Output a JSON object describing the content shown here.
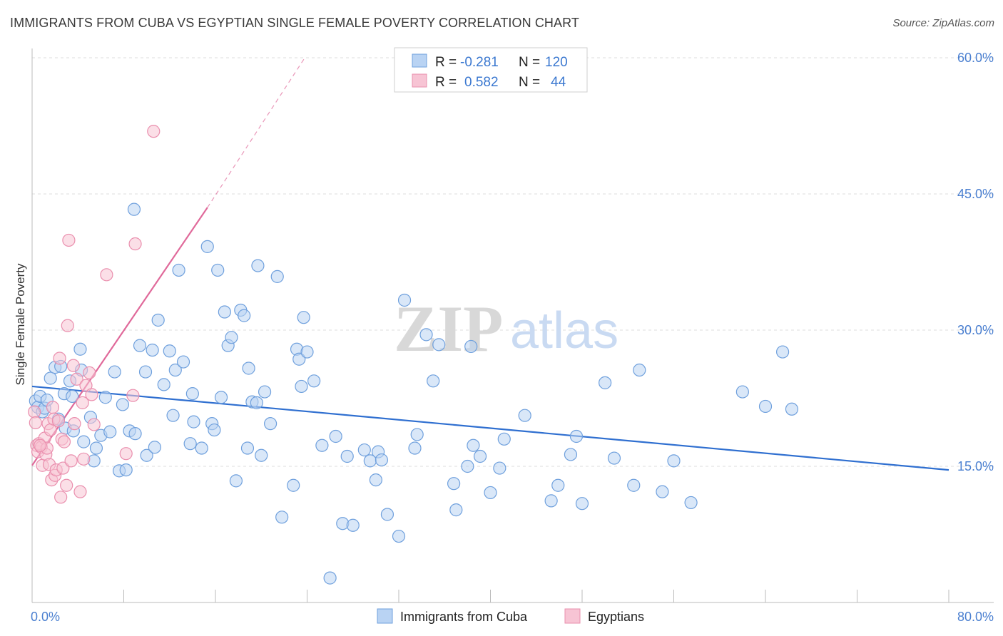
{
  "title": "IMMIGRANTS FROM CUBA VS EGYPTIAN SINGLE FEMALE POVERTY CORRELATION CHART",
  "source": "Source: ZipAtlas.com",
  "watermark": {
    "zip": "ZIP",
    "atlas": "atlas"
  },
  "colors": {
    "blue_fill": "#b9d3f3",
    "blue_stroke": "#6fa0dd",
    "blue_line": "#2f6fd0",
    "pink_fill": "#f7c4d4",
    "pink_stroke": "#ea8fae",
    "pink_line": "#e0699a",
    "tick_text": "#4a7fd0",
    "grid": "#dcdcdc"
  },
  "legend": {
    "rows": [
      {
        "r_label": "R =",
        "r_value": "-0.281",
        "n_label": "N =",
        "n_value": "120"
      },
      {
        "r_label": "R =",
        "r_value": "0.582",
        "n_label": "N =",
        "n_value": "44"
      }
    ]
  },
  "chart_data": {
    "type": "scatter",
    "ylabel": "Single Female Poverty",
    "xlim": [
      0,
      80
    ],
    "ylim": [
      0,
      60
    ],
    "x_tick_labels": [
      "0.0%",
      "80.0%"
    ],
    "y_ticks": [
      15,
      30,
      45,
      60
    ],
    "y_tick_labels": [
      "15.0%",
      "30.0%",
      "45.0%",
      "60.0%"
    ],
    "grid": true,
    "legend_position": "bottom",
    "series": [
      {
        "name": "Immigrants from Cuba",
        "color": "blue",
        "trend": {
          "x": [
            0,
            80
          ],
          "y": [
            23.8,
            14.6
          ],
          "dashed_to": null
        },
        "points": [
          [
            0.3,
            22.2
          ],
          [
            0.5,
            21.5
          ],
          [
            0.7,
            22.7
          ],
          [
            0.9,
            21.0
          ],
          [
            1.1,
            21.4
          ],
          [
            1.3,
            22.3
          ],
          [
            1.6,
            24.7
          ],
          [
            2.0,
            25.9
          ],
          [
            2.3,
            20.2
          ],
          [
            2.5,
            26.0
          ],
          [
            2.8,
            23.0
          ],
          [
            2.9,
            19.2
          ],
          [
            3.3,
            24.4
          ],
          [
            3.5,
            22.7
          ],
          [
            3.6,
            18.9
          ],
          [
            4.2,
            27.9
          ],
          [
            4.3,
            25.6
          ],
          [
            4.5,
            17.7
          ],
          [
            5.1,
            20.4
          ],
          [
            5.4,
            15.6
          ],
          [
            5.6,
            17.0
          ],
          [
            6.0,
            18.4
          ],
          [
            6.4,
            22.6
          ],
          [
            6.8,
            18.8
          ],
          [
            7.2,
            25.4
          ],
          [
            7.6,
            14.5
          ],
          [
            7.9,
            21.8
          ],
          [
            8.2,
            14.6
          ],
          [
            8.5,
            18.9
          ],
          [
            8.9,
            43.3
          ],
          [
            9.0,
            18.6
          ],
          [
            9.4,
            28.3
          ],
          [
            9.9,
            25.4
          ],
          [
            10.0,
            16.2
          ],
          [
            10.5,
            27.8
          ],
          [
            10.7,
            17.1
          ],
          [
            11.0,
            31.1
          ],
          [
            11.5,
            24.0
          ],
          [
            12.0,
            27.7
          ],
          [
            12.3,
            20.6
          ],
          [
            12.5,
            25.6
          ],
          [
            12.8,
            36.6
          ],
          [
            13.2,
            26.5
          ],
          [
            13.8,
            17.5
          ],
          [
            14.0,
            23.0
          ],
          [
            14.1,
            19.9
          ],
          [
            14.8,
            17.0
          ],
          [
            15.3,
            39.2
          ],
          [
            15.7,
            19.7
          ],
          [
            15.9,
            19.0
          ],
          [
            16.2,
            36.6
          ],
          [
            16.5,
            22.6
          ],
          [
            16.8,
            32.0
          ],
          [
            17.1,
            28.3
          ],
          [
            17.4,
            29.2
          ],
          [
            17.8,
            13.4
          ],
          [
            18.2,
            32.2
          ],
          [
            18.5,
            31.6
          ],
          [
            18.8,
            17.0
          ],
          [
            18.9,
            25.8
          ],
          [
            19.2,
            22.1
          ],
          [
            19.6,
            22.0
          ],
          [
            19.7,
            37.1
          ],
          [
            20.0,
            16.2
          ],
          [
            20.3,
            23.2
          ],
          [
            20.8,
            19.7
          ],
          [
            21.4,
            35.9
          ],
          [
            21.8,
            9.4
          ],
          [
            22.8,
            12.9
          ],
          [
            23.1,
            27.9
          ],
          [
            23.3,
            26.8
          ],
          [
            23.5,
            23.8
          ],
          [
            23.7,
            31.4
          ],
          [
            24.0,
            27.6
          ],
          [
            24.6,
            24.4
          ],
          [
            25.3,
            17.3
          ],
          [
            26.0,
            2.7
          ],
          [
            26.5,
            18.3
          ],
          [
            27.1,
            8.7
          ],
          [
            27.5,
            16.1
          ],
          [
            28.0,
            8.5
          ],
          [
            29.0,
            16.8
          ],
          [
            29.5,
            15.6
          ],
          [
            30.0,
            13.5
          ],
          [
            30.2,
            16.6
          ],
          [
            30.5,
            15.7
          ],
          [
            31.0,
            9.7
          ],
          [
            32.0,
            7.3
          ],
          [
            32.5,
            33.3
          ],
          [
            33.4,
            17.0
          ],
          [
            33.6,
            18.5
          ],
          [
            34.4,
            29.5
          ],
          [
            35.0,
            24.4
          ],
          [
            35.5,
            28.4
          ],
          [
            36.8,
            13.1
          ],
          [
            37.0,
            10.2
          ],
          [
            38.0,
            15.0
          ],
          [
            38.3,
            28.2
          ],
          [
            38.5,
            17.3
          ],
          [
            39.1,
            16.1
          ],
          [
            40.0,
            12.1
          ],
          [
            40.8,
            14.8
          ],
          [
            41.2,
            18.0
          ],
          [
            43.0,
            20.6
          ],
          [
            45.3,
            11.2
          ],
          [
            45.9,
            12.9
          ],
          [
            47.0,
            16.3
          ],
          [
            47.5,
            18.3
          ],
          [
            48.0,
            10.9
          ],
          [
            50.0,
            24.2
          ],
          [
            50.8,
            15.9
          ],
          [
            52.5,
            12.9
          ],
          [
            53.0,
            25.6
          ],
          [
            55.0,
            12.2
          ],
          [
            56.0,
            15.6
          ],
          [
            57.5,
            11.0
          ],
          [
            62.0,
            23.2
          ],
          [
            64.0,
            21.6
          ],
          [
            65.5,
            27.6
          ],
          [
            66.3,
            21.3
          ]
        ]
      },
      {
        "name": "Egyptians",
        "color": "pink",
        "trend": {
          "x": [
            0,
            15.3
          ],
          "y": [
            15.1,
            43.5
          ],
          "dashed_to": [
            23.8,
            60
          ]
        },
        "points": [
          [
            0.2,
            21.0
          ],
          [
            0.3,
            19.8
          ],
          [
            0.4,
            17.3
          ],
          [
            0.5,
            16.6
          ],
          [
            0.6,
            17.5
          ],
          [
            0.8,
            17.1
          ],
          [
            0.9,
            15.1
          ],
          [
            1.1,
            18.1
          ],
          [
            1.2,
            16.3
          ],
          [
            1.3,
            17.0
          ],
          [
            1.4,
            19.7
          ],
          [
            1.5,
            15.2
          ],
          [
            1.6,
            19.0
          ],
          [
            1.7,
            13.5
          ],
          [
            1.8,
            21.5
          ],
          [
            1.9,
            20.2
          ],
          [
            2.0,
            14.0
          ],
          [
            2.1,
            14.6
          ],
          [
            2.3,
            20.0
          ],
          [
            2.4,
            26.9
          ],
          [
            2.5,
            11.6
          ],
          [
            2.6,
            18.0
          ],
          [
            2.7,
            14.8
          ],
          [
            2.8,
            17.7
          ],
          [
            3.0,
            12.9
          ],
          [
            3.1,
            30.5
          ],
          [
            3.2,
            39.9
          ],
          [
            3.4,
            15.6
          ],
          [
            3.6,
            26.1
          ],
          [
            3.7,
            19.7
          ],
          [
            3.9,
            24.6
          ],
          [
            4.2,
            12.2
          ],
          [
            4.4,
            22.0
          ],
          [
            4.5,
            15.8
          ],
          [
            4.7,
            23.9
          ],
          [
            5.0,
            25.3
          ],
          [
            5.2,
            22.9
          ],
          [
            5.4,
            19.6
          ],
          [
            6.5,
            36.1
          ],
          [
            8.2,
            16.4
          ],
          [
            8.8,
            22.8
          ],
          [
            9.0,
            39.5
          ],
          [
            10.6,
            51.9
          ],
          [
            0.7,
            17.3
          ]
        ]
      }
    ]
  }
}
